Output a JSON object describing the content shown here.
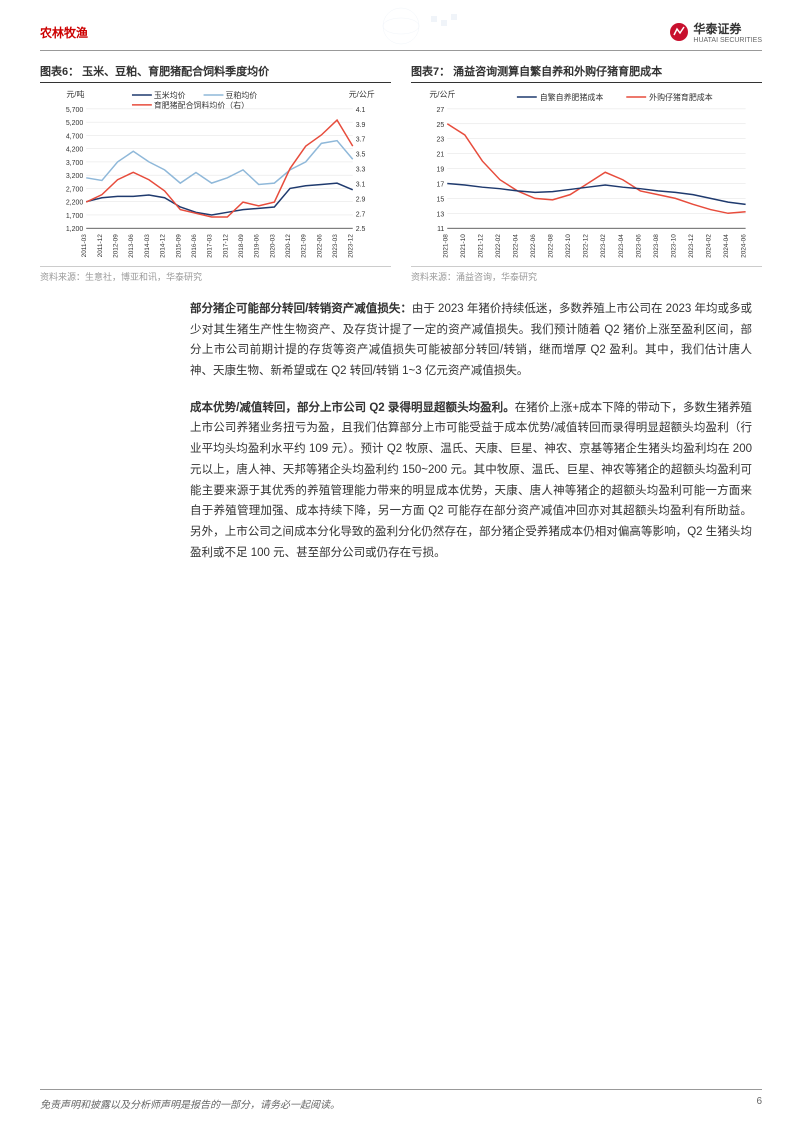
{
  "header": {
    "category": "农林牧渔",
    "company": "华泰证券",
    "company_en": "HUATAI SECURITIES"
  },
  "chart6": {
    "title": "图表6：   玉米、豆粕、育肥猪配合饲料季度均价",
    "source": "资料来源：生意社，博亚和讯，华泰研究",
    "type": "line",
    "y_left_label": "元/吨",
    "y_right_label": "元/公斤",
    "y_left_ticks": [
      1200,
      1700,
      2200,
      2700,
      3200,
      3700,
      4200,
      4700,
      5200,
      5700
    ],
    "y_right_ticks": [
      2.5,
      2.7,
      2.9,
      3.1,
      3.3,
      3.5,
      3.7,
      3.9,
      4.1
    ],
    "x_labels": [
      "2011-03",
      "2011-12",
      "2012-09",
      "2013-06",
      "2014-03",
      "2014-12",
      "2015-09",
      "2016-06",
      "2017-03",
      "2017-12",
      "2018-09",
      "2019-06",
      "2020-03",
      "2020-12",
      "2021-09",
      "2022-06",
      "2023-03",
      "2023-12"
    ],
    "legend": [
      "玉米均价",
      "豆粕均价",
      "育肥猪配合饲料均价（右）"
    ],
    "colors": [
      "#1f3a6e",
      "#8fb8d9",
      "#e74c3c"
    ],
    "series_corn": [
      2200,
      2350,
      2400,
      2400,
      2450,
      2350,
      2000,
      1800,
      1700,
      1800,
      1900,
      1950,
      2000,
      2700,
      2800,
      2850,
      2900,
      2650
    ],
    "series_soy": [
      3100,
      3000,
      3700,
      4100,
      3700,
      3400,
      2900,
      3300,
      2900,
      3100,
      3400,
      2850,
      2900,
      3400,
      3700,
      4400,
      4500,
      3800
    ],
    "series_feed_right": [
      2.85,
      2.95,
      3.15,
      3.25,
      3.15,
      3.0,
      2.75,
      2.7,
      2.65,
      2.65,
      2.85,
      2.8,
      2.85,
      3.3,
      3.6,
      3.75,
      3.95,
      3.6
    ],
    "background_color": "#ffffff",
    "grid_color": "#e0e0e0"
  },
  "chart7": {
    "title": "图表7：   涌益咨询测算自繁自养和外购仔猪育肥成本",
    "source": "资料来源：涌益咨询，华泰研究",
    "type": "line",
    "y_label": "元/公斤",
    "y_ticks": [
      11,
      13,
      15,
      17,
      19,
      21,
      23,
      25,
      27
    ],
    "x_labels": [
      "2021-08",
      "2021-10",
      "2021-12",
      "2022-02",
      "2022-04",
      "2022-06",
      "2022-08",
      "2022-10",
      "2022-12",
      "2023-02",
      "2023-04",
      "2023-06",
      "2023-08",
      "2023-10",
      "2023-12",
      "2024-02",
      "2024-04",
      "2024-06"
    ],
    "legend": [
      "自繁自养肥猪成本",
      "外购仔猪育肥成本"
    ],
    "colors": [
      "#1f3a6e",
      "#e74c3c"
    ],
    "series_self": [
      17.0,
      16.8,
      16.5,
      16.3,
      16.0,
      15.8,
      15.9,
      16.2,
      16.5,
      16.8,
      16.5,
      16.3,
      16.0,
      15.8,
      15.5,
      15.0,
      14.5,
      14.2
    ],
    "series_buy": [
      25.0,
      23.5,
      20.0,
      17.5,
      16.0,
      15.0,
      14.8,
      15.5,
      17.0,
      18.5,
      17.5,
      16.0,
      15.5,
      15.0,
      14.2,
      13.5,
      13.0,
      13.2
    ],
    "background_color": "#ffffff",
    "grid_color": "#e0e0e0"
  },
  "para1": {
    "bold": "部分猪企可能部分转回/转销资产减值损失：",
    "text": "由于 2023 年猪价持续低迷，多数养殖上市公司在 2023 年均或多或少对其生猪生产性生物资产、及存货计提了一定的资产减值损失。我们预计随着 Q2 猪价上涨至盈利区间，部分上市公司前期计提的存货等资产减值损失可能被部分转回/转销，继而增厚 Q2 盈利。其中，我们估计唐人神、天康生物、新希望或在 Q2 转回/转销 1~3 亿元资产减值损失。"
  },
  "para2": {
    "bold": "成本优势/减值转回，部分上市公司 Q2 录得明显超额头均盈利。",
    "text": "在猪价上涨+成本下降的带动下，多数生猪养殖上市公司养猪业务扭亏为盈，且我们估算部分上市可能受益于成本优势/减值转回而录得明显超额头均盈利（行业平均头均盈利水平约 109 元）。预计 Q2 牧原、温氏、天康、巨星、神农、京基等猪企生猪头均盈利均在 200 元以上，唐人神、天邦等猪企头均盈利约 150~200 元。其中牧原、温氏、巨星、神农等猪企的超额头均盈利可能主要来源于其优秀的养殖管理能力带来的明显成本优势，天康、唐人神等猪企的超额头均盈利可能一方面来自于养殖管理加强、成本持续下降，另一方面 Q2 可能存在部分资产减值冲回亦对其超额头均盈利有所助益。另外，上市公司之间成本分化导致的盈利分化仍然存在，部分猪企受养猪成本仍相对偏高等影响，Q2 生猪头均盈利或不足 100 元、甚至部分公司或仍存在亏损。"
  },
  "footer": {
    "disclaimer": "免责声明和披露以及分析师声明是报告的一部分，请务必一起阅读。",
    "page": "6"
  }
}
